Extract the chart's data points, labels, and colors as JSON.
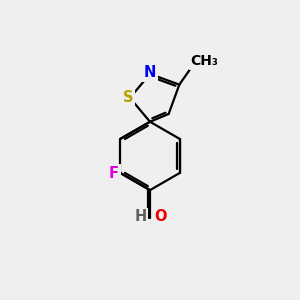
{
  "background_color": "#efefef",
  "bond_color": "#000000",
  "bond_width": 1.6,
  "atom_colors": {
    "S": "#b8a000",
    "N": "#0000ee",
    "F": "#dd00dd",
    "O": "#ee0000",
    "H": "#606060",
    "C": "#000000"
  },
  "font_size": 10.5,
  "figsize": [
    3.0,
    3.0
  ],
  "dpi": 100,
  "xlim": [
    0,
    10
  ],
  "ylim": [
    0,
    10
  ]
}
